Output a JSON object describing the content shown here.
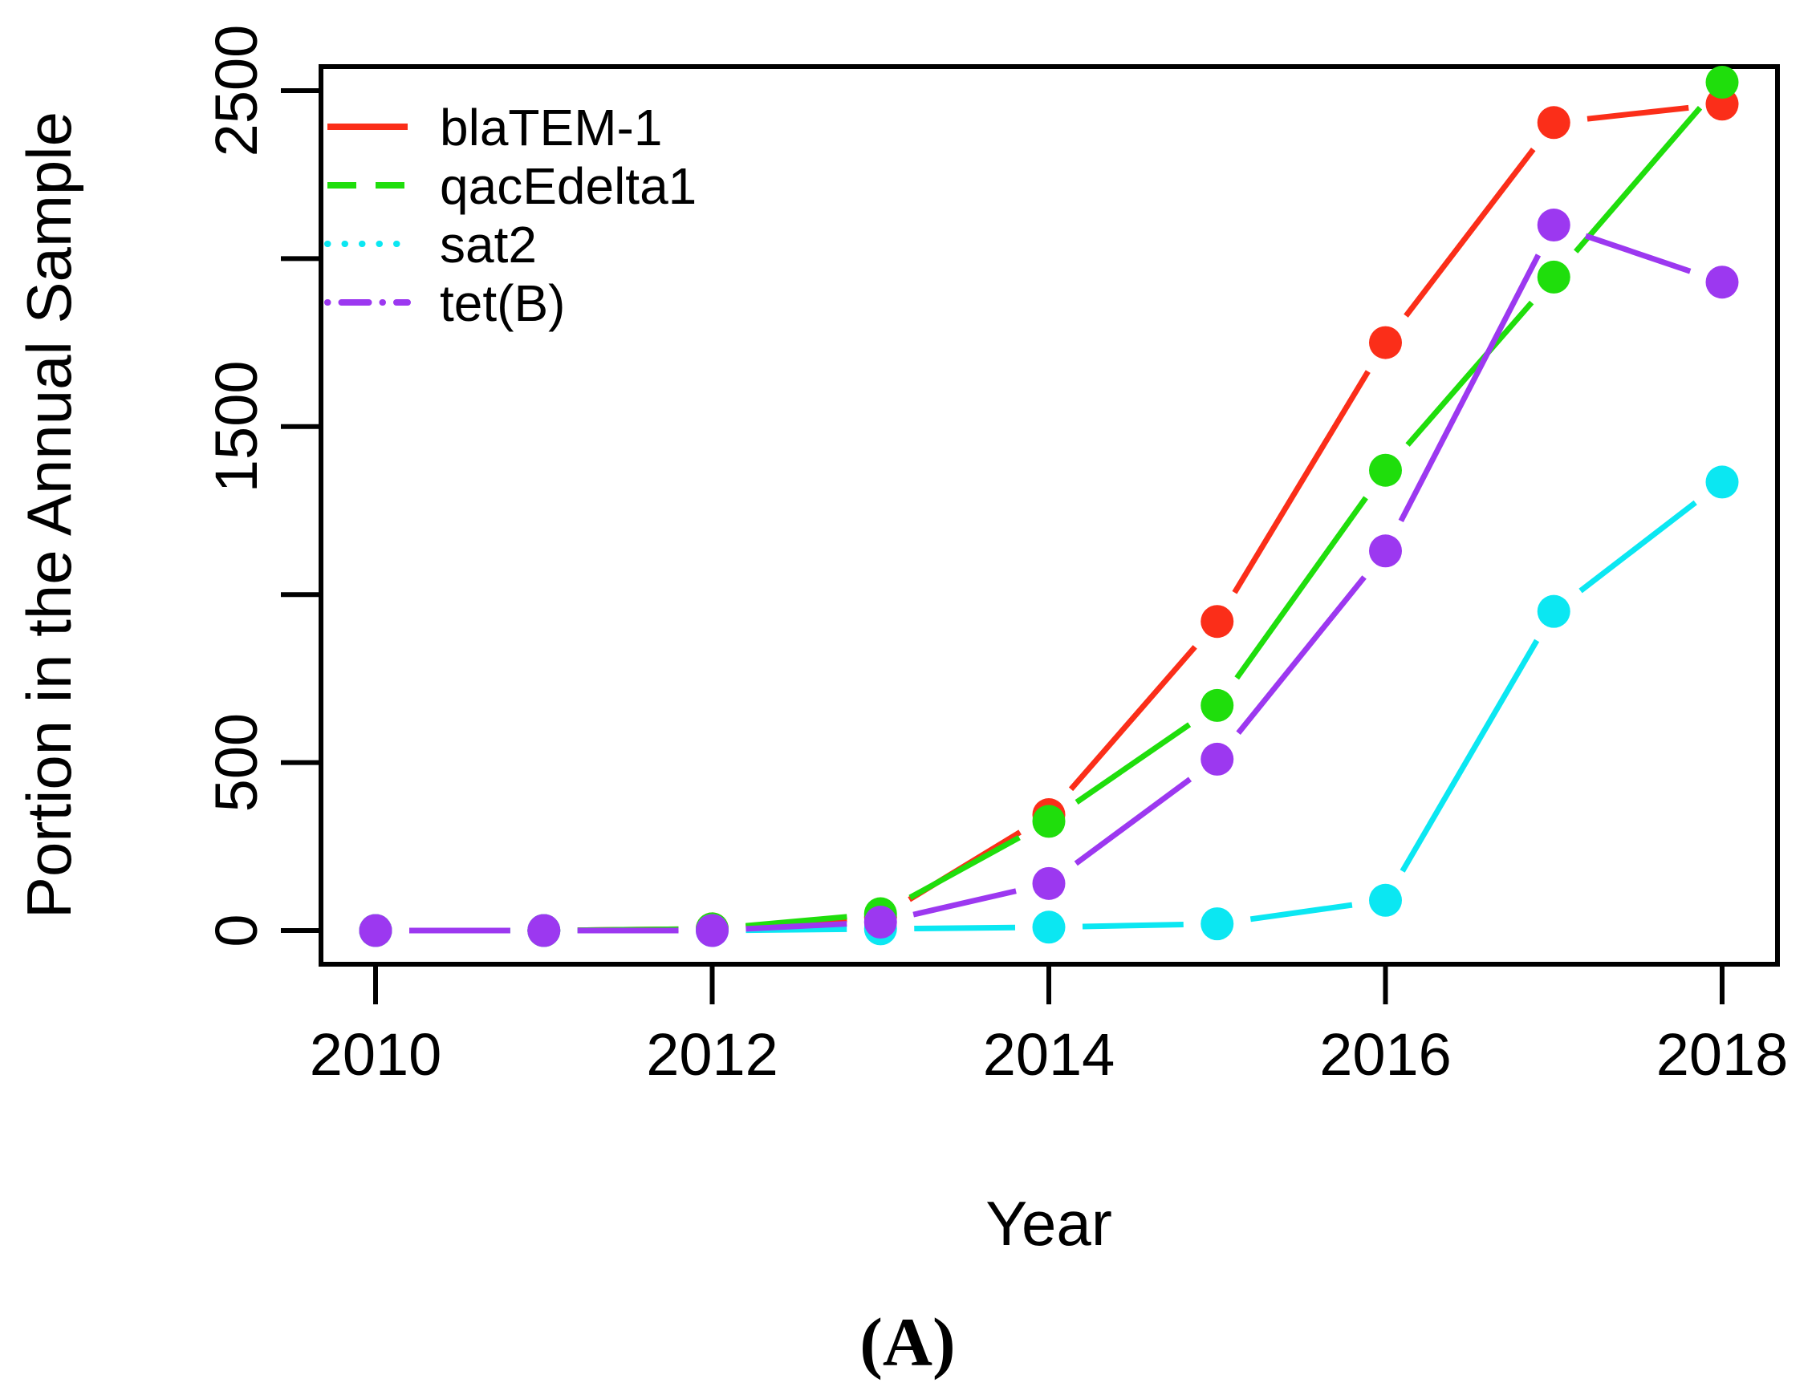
{
  "figure": {
    "caption": "(A)",
    "background": "#FFFFFF",
    "text_color": "#000000"
  },
  "chart_data": {
    "type": "line",
    "title": "",
    "xlabel": "Year",
    "ylabel": "Portion in the Annual Sample",
    "x": [
      2010,
      2011,
      2012,
      2013,
      2014,
      2015,
      2016,
      2017,
      2018
    ],
    "series": [
      {
        "name": "blaTEM-1",
        "color": "#FB2E19",
        "legend_linetype": "solid",
        "values": [
          0,
          0,
          5,
          40,
          345,
          920,
          1750,
          2405,
          2460
        ]
      },
      {
        "name": "qacEdelta1",
        "color": "#1FDE0C",
        "legend_linetype": "dashed",
        "values": [
          0,
          0,
          5,
          50,
          325,
          670,
          1370,
          1945,
          2525
        ]
      },
      {
        "name": "sat2",
        "color": "#0BE7F2",
        "legend_linetype": "dotted",
        "values": [
          0,
          0,
          0,
          5,
          10,
          20,
          90,
          950,
          1335
        ]
      },
      {
        "name": "tet(B)",
        "color": "#9C38F0",
        "legend_linetype": "dashdot",
        "values": [
          0,
          0,
          0,
          25,
          140,
          510,
          1130,
          2100,
          1930
        ]
      }
    ],
    "x_ticks": [
      {
        "v": 2010,
        "label": "2010"
      },
      {
        "v": 2012,
        "label": "2012"
      },
      {
        "v": 2014,
        "label": "2014"
      },
      {
        "v": 2016,
        "label": "2016"
      },
      {
        "v": 2018,
        "label": "2018"
      }
    ],
    "y_ticks": [
      {
        "v": 0,
        "label": "0"
      },
      {
        "v": 500,
        "label": "500"
      },
      {
        "v": 1000,
        "label": ""
      },
      {
        "v": 1500,
        "label": "1500"
      },
      {
        "v": 2000,
        "label": ""
      },
      {
        "v": 2500,
        "label": "2500"
      }
    ],
    "xlim": [
      2009.7,
      2018.3
    ],
    "ylim": [
      0,
      2500
    ],
    "grid": false,
    "legend_position": "top-left",
    "marker": "filled-circle",
    "line_style_plotted": "solid-with-point-gaps"
  }
}
